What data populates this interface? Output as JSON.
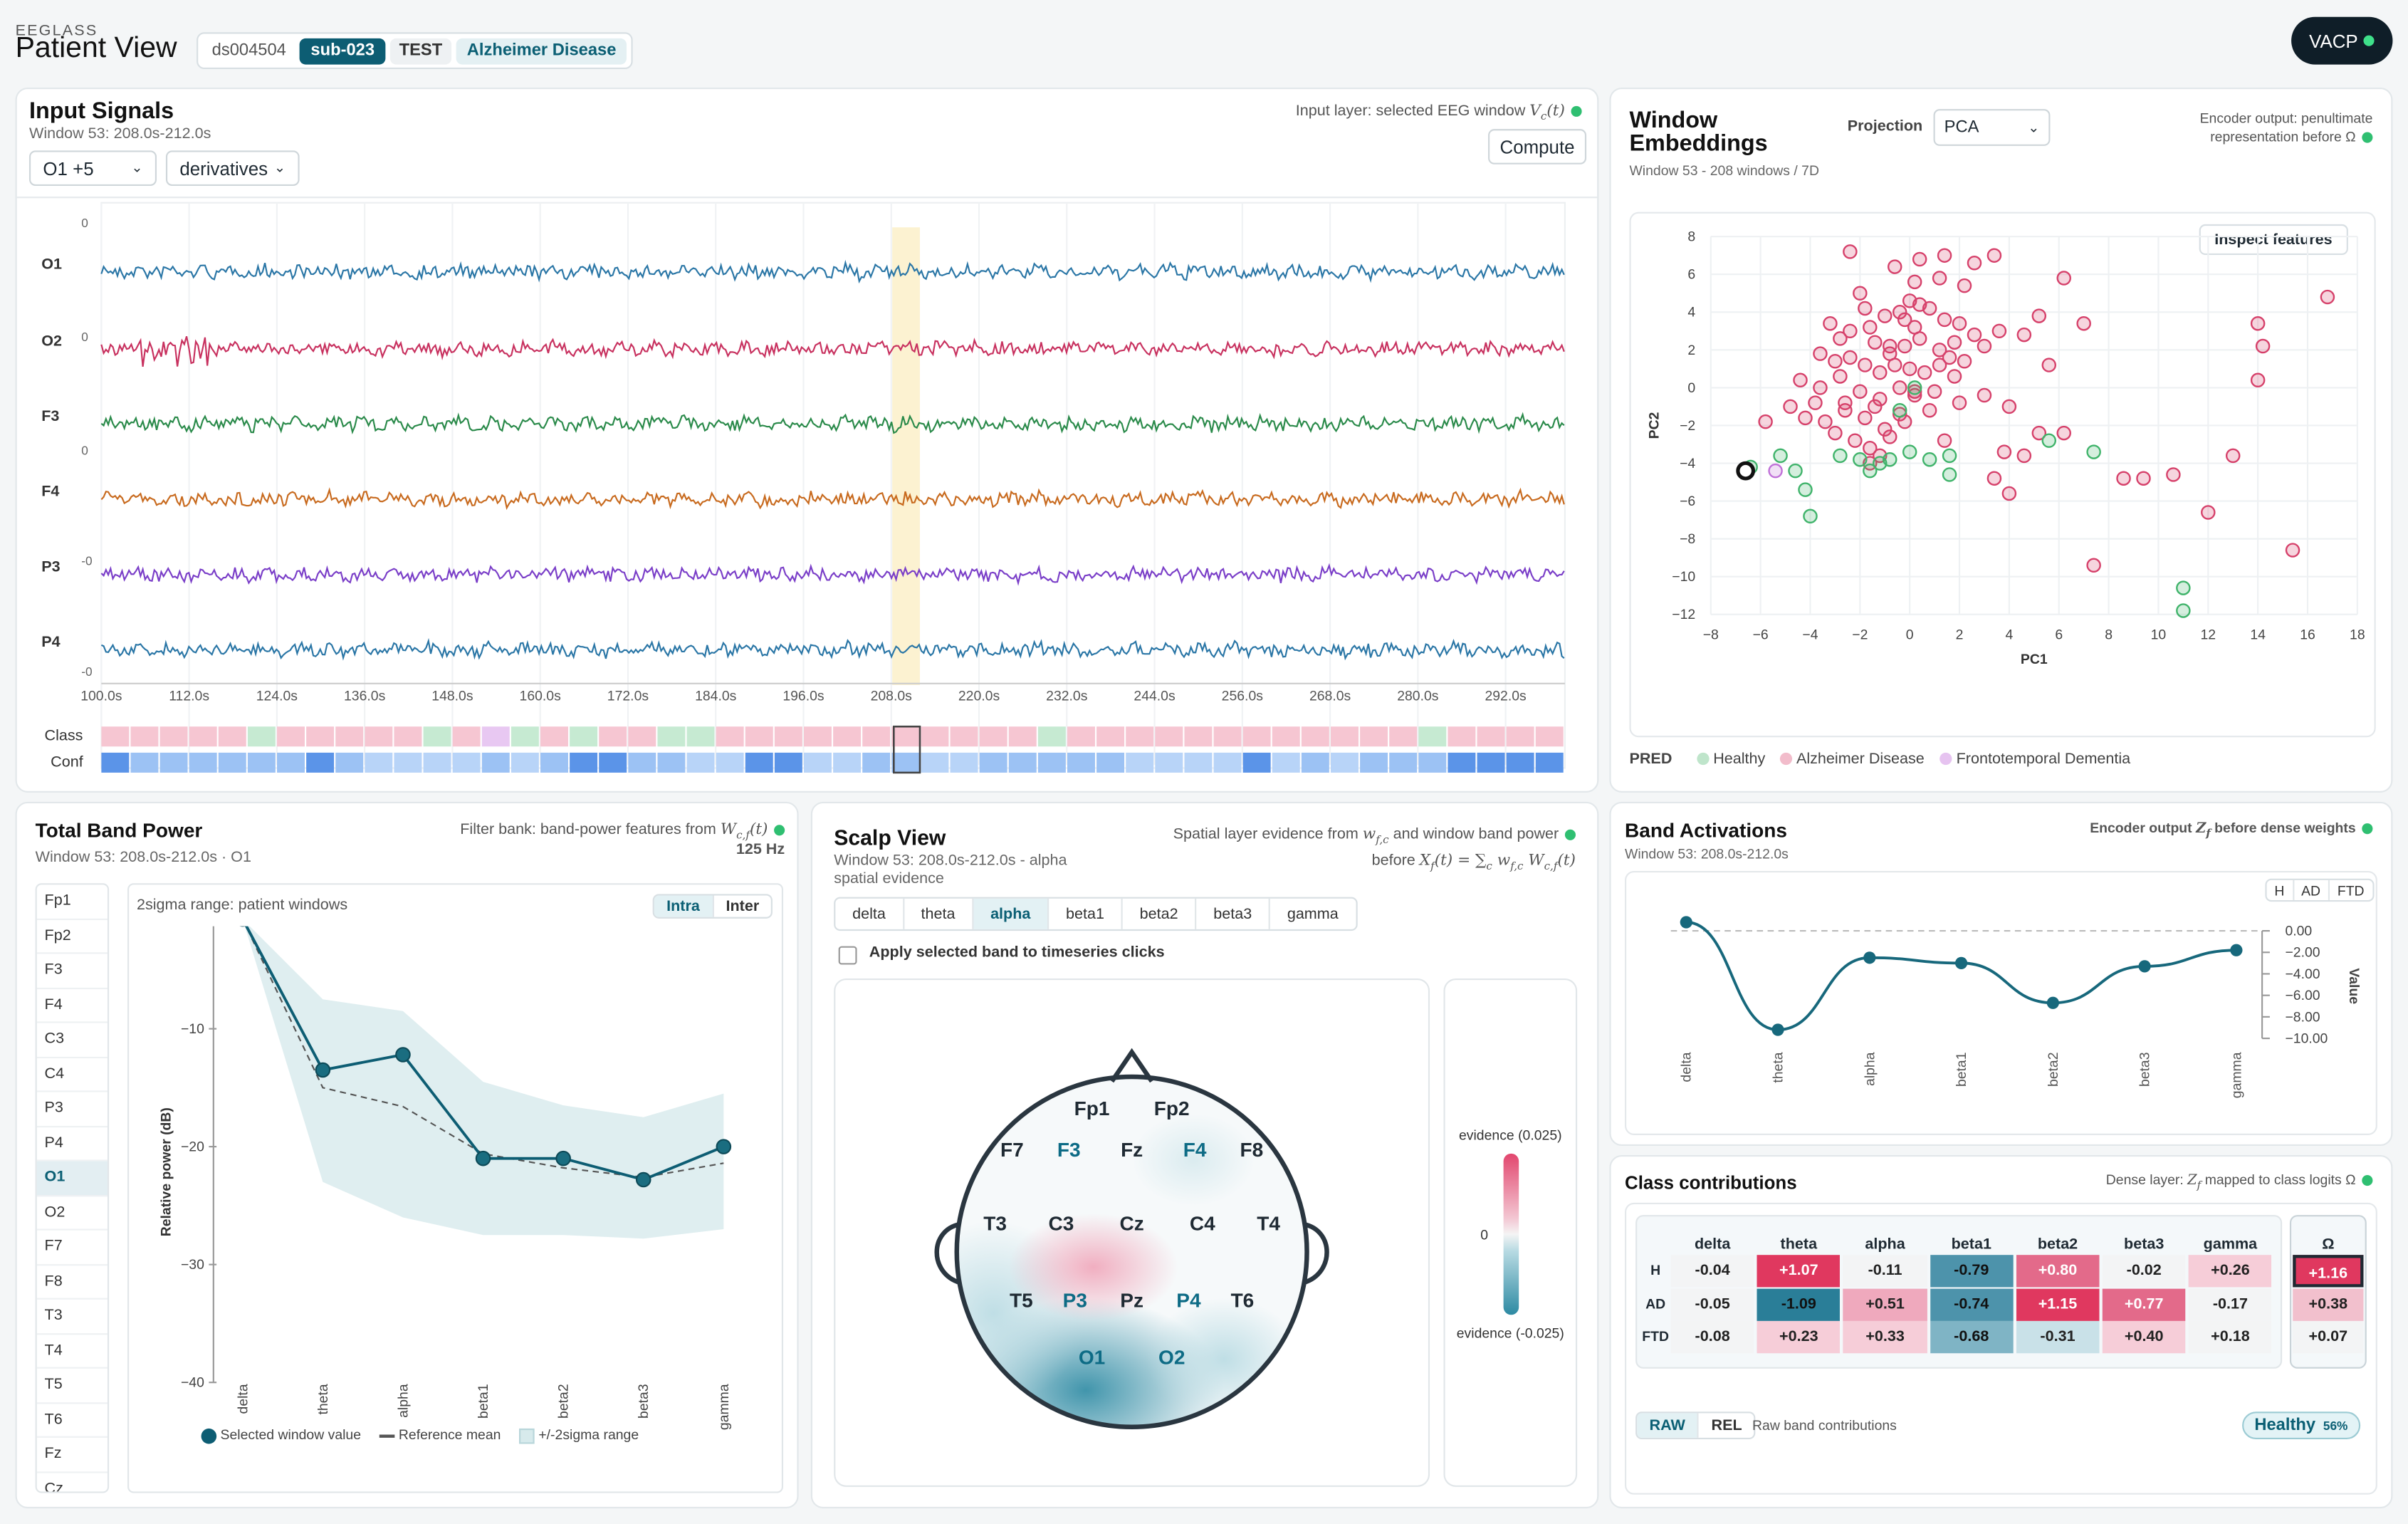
{
  "app": {
    "brand": "EEGLASS",
    "title": "Patient View",
    "chips": [
      "ds004504",
      "sub-023",
      "TEST",
      "Alzheimer Disease"
    ],
    "user": "VACP"
  },
  "input_signals": {
    "title": "Input Signals",
    "subtitle": "Window 53: 208.0s-212.0s",
    "layer_note": "Input layer: selected EEG window",
    "channel_select": "O1 +5",
    "mode_select": "derivatives",
    "compute": "Compute",
    "channels": [
      "O1",
      "O2",
      "F3",
      "F4",
      "P3",
      "P4"
    ],
    "offsets": [
      "0",
      "0",
      "",
      "0",
      "-0",
      "",
      "-0"
    ],
    "time_ticks": [
      "100.0s",
      "112.0s",
      "124.0s",
      "136.0s",
      "148.0s",
      "160.0s",
      "172.0s",
      "184.0s",
      "196.0s",
      "208.0s",
      "220.0s",
      "232.0s",
      "244.0s",
      "256.0s",
      "268.0s",
      "280.0s",
      "292.0s"
    ],
    "row_class": "Class",
    "row_conf": "Conf",
    "colors": [
      "#2a76a6",
      "#c8315f",
      "#2a8a4a",
      "#c86a1e",
      "#7a3ec8",
      "#2a76a6"
    ]
  },
  "embeddings": {
    "title": "Window Embeddings",
    "subtitle": "Window 53 - 208 windows / 7D",
    "projection_label": "Projection",
    "projection_value": "PCA",
    "encoder_note": "Encoder output: penultimate representation before",
    "inspect": "Inspect features",
    "xlabel": "PC1",
    "ylabel": "PC2",
    "pred_label": "PRED",
    "legend": [
      "Healthy",
      "Alzheimer Disease",
      "Frontotemporal Dementia"
    ]
  },
  "chart_data": [
    {
      "type": "scatter",
      "title": "",
      "xlabel": "PC1",
      "ylabel": "PC2",
      "xlim": [
        -8,
        18
      ],
      "ylim": [
        -12,
        8
      ],
      "x_ticks": [
        "−8",
        "−6",
        "−4",
        "−2",
        "0",
        "2",
        "4",
        "6",
        "8",
        "10",
        "12",
        "14",
        "16",
        "18"
      ],
      "y_ticks": [
        "8",
        "6",
        "4",
        "2",
        "0",
        "−2",
        "−4",
        "−6",
        "−8",
        "−10",
        "−12"
      ],
      "series": [
        {
          "name": "Alzheimer Disease",
          "color": "#d6406a",
          "points": [
            [
              -2.4,
              7.2
            ],
            [
              -0.6,
              6.4
            ],
            [
              0.4,
              6.8
            ],
            [
              1.4,
              7
            ],
            [
              2.6,
              6.6
            ],
            [
              3.4,
              7
            ],
            [
              0.2,
              5.6
            ],
            [
              1.2,
              5.8
            ],
            [
              2.2,
              5.4
            ],
            [
              -2,
              5
            ],
            [
              6.2,
              5.8
            ],
            [
              -3.2,
              3.4
            ],
            [
              -2.8,
              2.6
            ],
            [
              -2.4,
              3
            ],
            [
              -1.6,
              3.2
            ],
            [
              -1,
              3.8
            ],
            [
              -0.4,
              4
            ],
            [
              0,
              4.6
            ],
            [
              0.4,
              4.4
            ],
            [
              0.8,
              4.2
            ],
            [
              1.4,
              3.6
            ],
            [
              2,
              3.4
            ],
            [
              2.6,
              2.8
            ],
            [
              3.6,
              3
            ],
            [
              -0.2,
              3.6
            ],
            [
              0.2,
              3.2
            ],
            [
              -1.4,
              2.4
            ],
            [
              -0.8,
              2.2
            ],
            [
              -0.2,
              2.2
            ],
            [
              0.4,
              2.6
            ],
            [
              1.2,
              2
            ],
            [
              1.8,
              2.4
            ],
            [
              -3.6,
              1.8
            ],
            [
              -3,
              1.4
            ],
            [
              -2.4,
              1.6
            ],
            [
              -1.8,
              1.2
            ],
            [
              -1.2,
              0.8
            ],
            [
              -0.6,
              1.2
            ],
            [
              0,
              1
            ],
            [
              0.6,
              0.8
            ],
            [
              1.2,
              1.2
            ],
            [
              1.8,
              0.6
            ],
            [
              2.2,
              1.4
            ],
            [
              3,
              2.2
            ],
            [
              -4.4,
              0.4
            ],
            [
              -3.6,
              0
            ],
            [
              -2.8,
              0.6
            ],
            [
              -2,
              -0.2
            ],
            [
              -1.2,
              -0.6
            ],
            [
              -0.4,
              0
            ],
            [
              0.2,
              -0.4
            ],
            [
              1,
              -0.2
            ],
            [
              2,
              -0.8
            ],
            [
              3,
              -0.4
            ],
            [
              -4.8,
              -1
            ],
            [
              -4.2,
              -1.6
            ],
            [
              -3.4,
              -1.8
            ],
            [
              -2.6,
              -1.2
            ],
            [
              -1.8,
              -1.6
            ],
            [
              -1,
              -2.2
            ],
            [
              -0.2,
              -1.8
            ],
            [
              0.8,
              -1.2
            ],
            [
              -3,
              -2.4
            ],
            [
              -2.2,
              -2.8
            ],
            [
              -1.6,
              -3.2
            ],
            [
              -0.8,
              -2.6
            ],
            [
              1.4,
              -2.8
            ],
            [
              -5.8,
              -1.8
            ],
            [
              -1.6,
              -4
            ],
            [
              -1.2,
              -3.6
            ],
            [
              3.8,
              -3.4
            ],
            [
              4.6,
              -3.6
            ],
            [
              3.4,
              -4.8
            ],
            [
              4,
              -5.6
            ],
            [
              5.2,
              -2.4
            ],
            [
              6.2,
              -2.4
            ],
            [
              4,
              -1
            ],
            [
              5.6,
              1.2
            ],
            [
              4.6,
              2.8
            ],
            [
              5.2,
              3.8
            ],
            [
              7,
              3.4
            ],
            [
              8.6,
              -4.8
            ],
            [
              9.4,
              -4.8
            ],
            [
              10.6,
              -4.6
            ],
            [
              13,
              -3.6
            ],
            [
              12,
              -6.6
            ],
            [
              7.4,
              -9.4
            ],
            [
              15.4,
              -8.6
            ],
            [
              14,
              3.4
            ],
            [
              14.2,
              2.2
            ],
            [
              14,
              0.4
            ],
            [
              16.8,
              4.8
            ],
            [
              -1.8,
              4.2
            ],
            [
              -0.8,
              1.8
            ],
            [
              0.2,
              -0.2
            ],
            [
              -2.6,
              -0.8
            ],
            [
              -3.8,
              -0.8
            ],
            [
              1.6,
              1.6
            ],
            [
              -1.4,
              -1
            ],
            [
              -0.4,
              -1.4
            ]
          ]
        },
        {
          "name": "Healthy",
          "color": "#3fb36a",
          "points": [
            [
              -6.4,
              -4.2
            ],
            [
              -5.2,
              -3.6
            ],
            [
              -4.2,
              -5.4
            ],
            [
              -4.6,
              -4.4
            ],
            [
              -4,
              -6.8
            ],
            [
              -2.8,
              -3.6
            ],
            [
              -2,
              -3.8
            ],
            [
              -1.2,
              -4
            ],
            [
              -0.8,
              -3.8
            ],
            [
              0,
              -3.4
            ],
            [
              0.8,
              -3.8
            ],
            [
              1.6,
              -3.6
            ],
            [
              1.6,
              -4.6
            ],
            [
              -1.6,
              -4.4
            ],
            [
              -0.4,
              -1.2
            ],
            [
              0.2,
              0
            ],
            [
              5.6,
              -2.8
            ],
            [
              7.4,
              -3.4
            ],
            [
              11,
              -10.6
            ],
            [
              11,
              -11.8
            ]
          ]
        },
        {
          "name": "Frontotemporal Dementia",
          "color": "#c070d8",
          "points": [
            [
              -5.4,
              -4.4
            ]
          ]
        }
      ],
      "selected": [
        -6.6,
        -4.4
      ]
    },
    {
      "type": "line",
      "title": "",
      "xlabel": "",
      "ylabel": "Relative power (dB)",
      "categories": [
        "delta",
        "theta",
        "alpha",
        "beta1",
        "beta2",
        "beta3",
        "gamma"
      ],
      "ylim": [
        -40,
        0
      ],
      "y_ticks": [
        "0",
        "−10",
        "−20",
        "−30",
        "−40"
      ],
      "series": [
        {
          "name": "Selected window value",
          "values": [
            -0.7,
            -13.5,
            -12.2,
            -21,
            -21,
            -22.8,
            -20
          ]
        },
        {
          "name": "Reference mean",
          "values": [
            -0.7,
            -15,
            -16.6,
            -20.6,
            -21.8,
            -22.6,
            -21.4
          ]
        },
        {
          "name": "+/-2sigma range",
          "upper": [
            -0.7,
            -7.5,
            -8.5,
            -14.5,
            -16.5,
            -17.5,
            -15.5
          ],
          "lower": [
            -0.7,
            -23,
            -26,
            -27.5,
            -27.5,
            -27.8,
            -27
          ]
        }
      ]
    },
    {
      "type": "line",
      "title": "",
      "ylabel": "Value",
      "categories": [
        "delta",
        "theta",
        "alpha",
        "beta1",
        "beta2",
        "beta3",
        "gamma"
      ],
      "ylim": [
        -10,
        0
      ],
      "y_ticks": [
        "0.00",
        "−2.00",
        "−4.00",
        "−6.00",
        "−8.00",
        "−10.00"
      ],
      "series": [
        {
          "name": "",
          "values": [
            0.8,
            -9.2,
            -2.5,
            -3,
            -6.7,
            -3.3,
            -1.8
          ]
        }
      ]
    },
    {
      "type": "heatmap",
      "columns": [
        "delta",
        "theta",
        "alpha",
        "beta1",
        "beta2",
        "beta3",
        "gamma"
      ],
      "rows": [
        "H",
        "AD",
        "FTD"
      ],
      "values": [
        [
          "-0.04",
          "+1.07",
          "-0.11",
          "-0.79",
          "+0.80",
          "-0.02",
          "+0.26"
        ],
        [
          "-0.05",
          "-1.09",
          "+0.51",
          "-0.74",
          "+1.15",
          "+0.77",
          "-0.17"
        ],
        [
          "-0.08",
          "+0.23",
          "+0.33",
          "-0.68",
          "-0.31",
          "+0.40",
          "+0.18"
        ]
      ],
      "omega_header": "Ω",
      "omega": [
        "+1.16",
        "+0.38",
        "+0.07"
      ]
    }
  ],
  "band_power": {
    "title": "Total Band Power",
    "subtitle": "Window 53: 208.0s-212.0s · O1",
    "note": "Filter bank: band-power features from",
    "hz": "125 Hz",
    "range_label": "2sigma range: patient windows",
    "toggle": [
      "Intra",
      "Inter"
    ],
    "channels": [
      "Fp1",
      "Fp2",
      "F3",
      "F4",
      "C3",
      "C4",
      "P3",
      "P4",
      "O1",
      "O2",
      "F7",
      "F8",
      "T3",
      "T4",
      "T5",
      "T6",
      "Fz",
      "Cz"
    ],
    "legend": [
      "Selected window value",
      "Reference mean",
      "+/-2sigma range"
    ]
  },
  "scalp": {
    "title": "Scalp View",
    "subtitle": "Window 53: 208.0s-212.0s - alpha",
    "subtitle2": "spatial evidence",
    "note1": "Spatial layer evidence from",
    "note1b": "and window band power",
    "note2": "before",
    "tabs": [
      "delta",
      "theta",
      "alpha",
      "beta1",
      "beta2",
      "beta3",
      "gamma"
    ],
    "checkbox": "Apply selected band to timeseries clicks",
    "electrodes": [
      "Fp1",
      "Fp2",
      "F7",
      "F3",
      "Fz",
      "F4",
      "F8",
      "T3",
      "C3",
      "Cz",
      "C4",
      "T4",
      "T5",
      "P3",
      "Pz",
      "P4",
      "T6",
      "O1",
      "O2"
    ],
    "cbar_top": "evidence (0.025)",
    "cbar_mid": "0",
    "cbar_bottom": "evidence (-0.025)"
  },
  "band_act": {
    "title": "Band Activations",
    "subtitle": "Window 53: 208.0s-212.0s",
    "note": "Encoder output",
    "note2": "before dense weights",
    "toggle": [
      "H",
      "AD",
      "FTD"
    ],
    "ylabel": "Value"
  },
  "class_contrib": {
    "title": "Class contributions",
    "note": "Dense layer:",
    "note2": "mapped to class logits",
    "toggle": [
      "RAW",
      "REL"
    ],
    "raw_label": "Raw band contributions",
    "pred": "Healthy",
    "pred_pct": "56%"
  }
}
